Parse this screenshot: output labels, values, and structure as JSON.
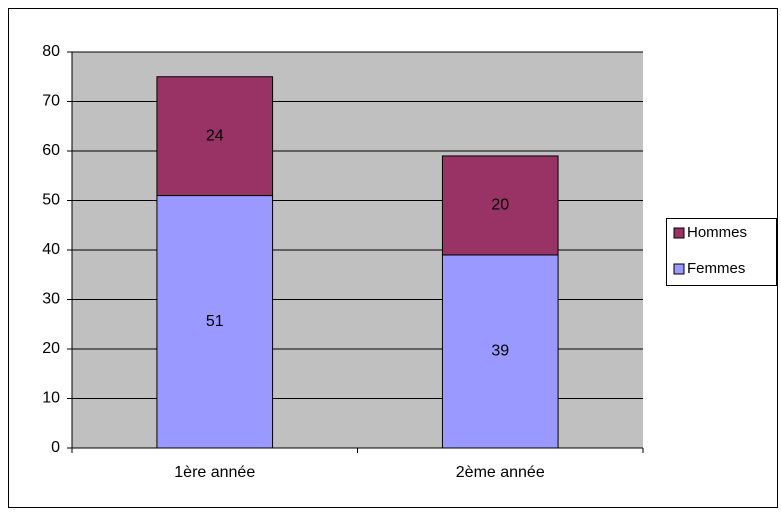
{
  "chart_data": {
    "type": "stacked_bar",
    "categories": [
      "1ère année",
      "2ème année"
    ],
    "series": [
      {
        "name": "Femmes",
        "color": "#9999ff",
        "values": [
          51,
          39
        ]
      },
      {
        "name": "Hommes",
        "color": "#993366",
        "values": [
          24,
          20
        ]
      }
    ],
    "ylim": [
      0,
      80
    ],
    "yticks": [
      0,
      10,
      20,
      30,
      40,
      50,
      60,
      70,
      80
    ],
    "grid": true,
    "legend": "right"
  }
}
